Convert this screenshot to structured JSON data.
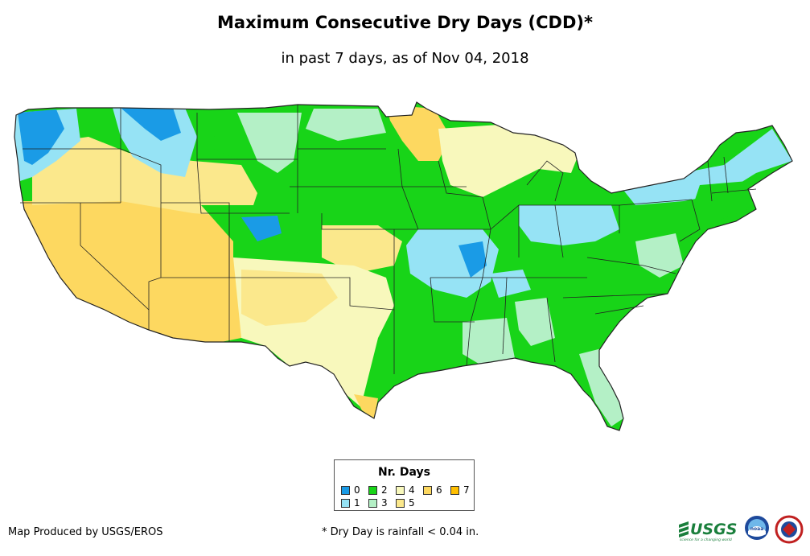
{
  "title": "Maximum Consecutive Dry Days (CDD)*",
  "subtitle": "in past 7 days, as of Nov 04, 2018",
  "legend": {
    "title": "Nr. Days",
    "items": [
      {
        "label": "0",
        "color": "#1a9be6"
      },
      {
        "label": "1",
        "color": "#96e3f5"
      },
      {
        "label": "2",
        "color": "#18d418"
      },
      {
        "label": "3",
        "color": "#b4f0c6"
      },
      {
        "label": "4",
        "color": "#f8f8bc"
      },
      {
        "label": "5",
        "color": "#fbe88c"
      },
      {
        "label": "6",
        "color": "#fdd860"
      },
      {
        "label": "7",
        "color": "#ffbf00"
      }
    ]
  },
  "credit": "Map Produced by USGS/EROS",
  "footnote": "* Dry Day is rainfall < 0.04 in.",
  "logos": {
    "usgs": "USGS",
    "usgs_tagline": "science for a changing world",
    "noaa": "noaa"
  }
}
